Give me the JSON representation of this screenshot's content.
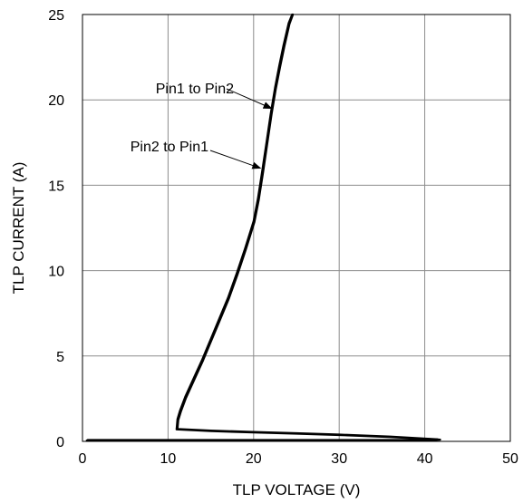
{
  "chart_data": {
    "type": "line",
    "title": "",
    "xlabel": "TLP VOLTAGE (V)",
    "ylabel": "TLP CURRENT (A)",
    "xlim": [
      0,
      50
    ],
    "ylim": [
      0,
      25
    ],
    "xticks": [
      0,
      10,
      20,
      30,
      40,
      50
    ],
    "yticks": [
      0,
      5,
      10,
      15,
      20,
      25
    ],
    "x_tick_labels": [
      "0",
      "10",
      "20",
      "30",
      "40",
      "50"
    ],
    "y_tick_labels": [
      "0",
      "5",
      "10",
      "15",
      "20",
      "25"
    ],
    "grid": true,
    "legend": "none",
    "line_color": "#000000",
    "series": [
      {
        "name": "Pin1 to Pin2",
        "x": [
          0.5,
          10,
          20,
          30,
          36,
          40,
          41.8,
          36,
          30,
          25,
          20,
          15,
          11,
          11.1,
          11.4,
          12,
          13,
          14,
          15,
          16,
          17,
          18,
          19,
          20,
          20.5,
          21,
          21.5,
          22,
          22.5,
          23,
          23.5,
          24.1,
          24.5
        ],
        "y": [
          0.05,
          0.05,
          0.05,
          0.05,
          0.05,
          0.05,
          0.1,
          0.25,
          0.37,
          0.45,
          0.52,
          0.6,
          0.7,
          1.3,
          1.8,
          2.6,
          3.7,
          4.8,
          6.0,
          7.2,
          8.4,
          9.8,
          11.3,
          12.9,
          14.2,
          15.8,
          17.5,
          19.2,
          20.7,
          22.0,
          23.2,
          24.5,
          25.0
        ]
      },
      {
        "name": "Pin2 to Pin1",
        "x": [
          0.6,
          10,
          20,
          30,
          36,
          40,
          41.5,
          36,
          30,
          25,
          20,
          15,
          11.1,
          11.2,
          11.5,
          12.1,
          13.1,
          14.1,
          15.1,
          16.1,
          17.1,
          18.1,
          19.1,
          20.1,
          20.6,
          21.1,
          21.6,
          22.1,
          22.6,
          23.1,
          23.6,
          24.2,
          24.6
        ],
        "y": [
          0.08,
          0.08,
          0.08,
          0.08,
          0.08,
          0.08,
          0.12,
          0.28,
          0.4,
          0.48,
          0.55,
          0.63,
          0.72,
          1.25,
          1.75,
          2.55,
          3.65,
          4.75,
          5.95,
          7.15,
          8.35,
          9.75,
          11.25,
          12.85,
          14.15,
          15.75,
          17.45,
          19.15,
          20.65,
          21.95,
          23.15,
          24.45,
          25.0
        ]
      }
    ],
    "annotations": [
      {
        "text": "Pin1 to Pin2",
        "arrow_to": [
          22.1,
          19.5
        ]
      },
      {
        "text": "Pin2 to Pin1",
        "arrow_to": [
          20.8,
          16.0
        ]
      }
    ]
  }
}
